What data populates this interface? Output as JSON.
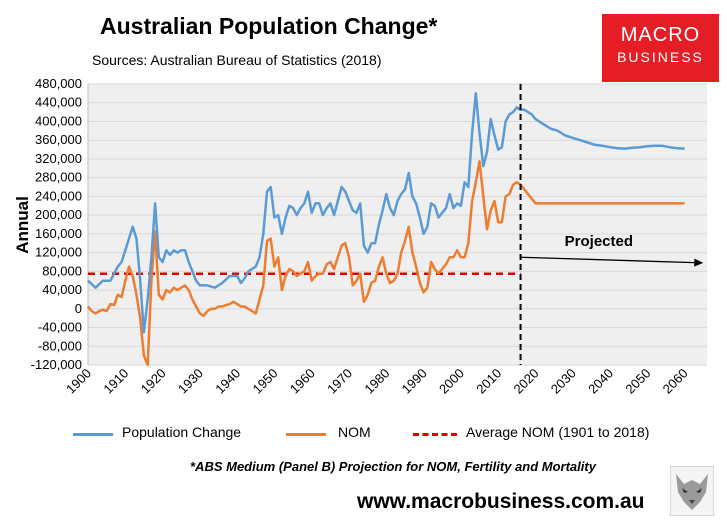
{
  "header": {
    "title": "Australian Population Change*",
    "sources": "Sources: Australian Bureau of Statistics (2018)"
  },
  "logo": {
    "line1": "MACRO",
    "line2": "BUSINESS"
  },
  "footer": {
    "footnote": "*ABS Medium (Panel B) Projection for NOM, Fertility and Mortality",
    "website": "www.macrobusiness.com.au"
  },
  "chart_data": {
    "type": "line",
    "title": "Australian Population Change*",
    "ylabel": "Annual",
    "xlim": [
      1900,
      2066
    ],
    "ylim": [
      -120000,
      480000
    ],
    "yticks": [
      -120000,
      -80000,
      -40000,
      0,
      40000,
      80000,
      120000,
      160000,
      200000,
      240000,
      280000,
      320000,
      360000,
      400000,
      440000,
      480000
    ],
    "ytick_labels": [
      "-120,000",
      "-80,000",
      "-40,000",
      "0",
      "40,000",
      "80,000",
      "120,000",
      "160,000",
      "200,000",
      "240,000",
      "280,000",
      "320,000",
      "360,000",
      "400,000",
      "440,000",
      "480,000"
    ],
    "xticks": [
      1900,
      1910,
      1920,
      1930,
      1940,
      1950,
      1960,
      1970,
      1980,
      1990,
      2000,
      2010,
      2020,
      2030,
      2040,
      2050,
      2060
    ],
    "xtick_labels": [
      "1900",
      "1910",
      "1920",
      "1930",
      "1940",
      "1950",
      "1960",
      "1970",
      "1980",
      "1990",
      "2000",
      "2010",
      "2020",
      "2030",
      "2040",
      "2050",
      "2060"
    ],
    "grid": "horizontal",
    "plot_background": "#efefef",
    "legend_position": "bottom",
    "series": [
      {
        "name": "Population Change",
        "color": "#5b9bd5",
        "points": [
          [
            1900,
            60000
          ],
          [
            1902,
            45000
          ],
          [
            1904,
            60000
          ],
          [
            1906,
            60000
          ],
          [
            1908,
            90000
          ],
          [
            1909,
            100000
          ],
          [
            1911,
            150000
          ],
          [
            1912,
            175000
          ],
          [
            1913,
            150000
          ],
          [
            1914,
            60000
          ],
          [
            1915,
            -50000
          ],
          [
            1916,
            20000
          ],
          [
            1917,
            110000
          ],
          [
            1918,
            225000
          ],
          [
            1919,
            110000
          ],
          [
            1920,
            100000
          ],
          [
            1921,
            125000
          ],
          [
            1922,
            115000
          ],
          [
            1923,
            125000
          ],
          [
            1924,
            120000
          ],
          [
            1925,
            125000
          ],
          [
            1926,
            125000
          ],
          [
            1927,
            100000
          ],
          [
            1928,
            80000
          ],
          [
            1929,
            60000
          ],
          [
            1930,
            50000
          ],
          [
            1932,
            50000
          ],
          [
            1934,
            45000
          ],
          [
            1936,
            55000
          ],
          [
            1938,
            70000
          ],
          [
            1940,
            70000
          ],
          [
            1941,
            55000
          ],
          [
            1942,
            65000
          ],
          [
            1943,
            80000
          ],
          [
            1945,
            90000
          ],
          [
            1946,
            110000
          ],
          [
            1947,
            160000
          ],
          [
            1948,
            250000
          ],
          [
            1949,
            260000
          ],
          [
            1950,
            195000
          ],
          [
            1951,
            200000
          ],
          [
            1952,
            160000
          ],
          [
            1953,
            195000
          ],
          [
            1954,
            220000
          ],
          [
            1955,
            215000
          ],
          [
            1956,
            200000
          ],
          [
            1957,
            215000
          ],
          [
            1958,
            225000
          ],
          [
            1959,
            250000
          ],
          [
            1960,
            205000
          ],
          [
            1961,
            225000
          ],
          [
            1962,
            225000
          ],
          [
            1963,
            200000
          ],
          [
            1964,
            215000
          ],
          [
            1965,
            225000
          ],
          [
            1966,
            200000
          ],
          [
            1967,
            230000
          ],
          [
            1968,
            260000
          ],
          [
            1969,
            250000
          ],
          [
            1970,
            230000
          ],
          [
            1971,
            210000
          ],
          [
            1972,
            205000
          ],
          [
            1973,
            225000
          ],
          [
            1974,
            135000
          ],
          [
            1975,
            120000
          ],
          [
            1976,
            140000
          ],
          [
            1977,
            140000
          ],
          [
            1978,
            180000
          ],
          [
            1979,
            210000
          ],
          [
            1980,
            245000
          ],
          [
            1981,
            215000
          ],
          [
            1982,
            200000
          ],
          [
            1983,
            230000
          ],
          [
            1984,
            245000
          ],
          [
            1985,
            255000
          ],
          [
            1986,
            290000
          ],
          [
            1987,
            240000
          ],
          [
            1988,
            225000
          ],
          [
            1989,
            195000
          ],
          [
            1990,
            160000
          ],
          [
            1991,
            175000
          ],
          [
            1992,
            225000
          ],
          [
            1993,
            220000
          ],
          [
            1994,
            195000
          ],
          [
            1995,
            205000
          ],
          [
            1996,
            215000
          ],
          [
            1997,
            245000
          ],
          [
            1998,
            215000
          ],
          [
            1999,
            225000
          ],
          [
            2000,
            220000
          ],
          [
            2001,
            270000
          ],
          [
            2002,
            260000
          ],
          [
            2003,
            375000
          ],
          [
            2004,
            460000
          ],
          [
            2005,
            375000
          ],
          [
            2006,
            305000
          ],
          [
            2007,
            335000
          ],
          [
            2008,
            405000
          ],
          [
            2009,
            370000
          ],
          [
            2010,
            340000
          ],
          [
            2011,
            345000
          ],
          [
            2012,
            400000
          ],
          [
            2013,
            415000
          ],
          [
            2014,
            420000
          ],
          [
            2015,
            430000
          ],
          [
            2016,
            425000
          ],
          [
            2017,
            425000
          ],
          [
            2018,
            420000
          ],
          [
            2019,
            415000
          ],
          [
            2020,
            405000
          ],
          [
            2022,
            395000
          ],
          [
            2024,
            385000
          ],
          [
            2026,
            380000
          ],
          [
            2028,
            370000
          ],
          [
            2030,
            365000
          ],
          [
            2032,
            360000
          ],
          [
            2034,
            355000
          ],
          [
            2036,
            350000
          ],
          [
            2038,
            348000
          ],
          [
            2040,
            345000
          ],
          [
            2042,
            343000
          ],
          [
            2044,
            342000
          ],
          [
            2046,
            344000
          ],
          [
            2048,
            345000
          ],
          [
            2050,
            347000
          ],
          [
            2052,
            348000
          ],
          [
            2054,
            348000
          ],
          [
            2056,
            345000
          ],
          [
            2058,
            343000
          ],
          [
            2060,
            342000
          ]
        ]
      },
      {
        "name": "NOM",
        "color": "#ed7d31",
        "points": [
          [
            1900,
            5000
          ],
          [
            1901,
            -5000
          ],
          [
            1902,
            -10000
          ],
          [
            1903,
            -5000
          ],
          [
            1904,
            -2000
          ],
          [
            1905,
            -5000
          ],
          [
            1906,
            10000
          ],
          [
            1907,
            8000
          ],
          [
            1908,
            30000
          ],
          [
            1909,
            25000
          ],
          [
            1910,
            60000
          ],
          [
            1911,
            90000
          ],
          [
            1912,
            70000
          ],
          [
            1913,
            30000
          ],
          [
            1914,
            -20000
          ],
          [
            1915,
            -100000
          ],
          [
            1916,
            -120000
          ],
          [
            1917,
            60000
          ],
          [
            1918,
            165000
          ],
          [
            1919,
            30000
          ],
          [
            1920,
            20000
          ],
          [
            1921,
            40000
          ],
          [
            1922,
            35000
          ],
          [
            1923,
            45000
          ],
          [
            1924,
            40000
          ],
          [
            1925,
            45000
          ],
          [
            1926,
            50000
          ],
          [
            1927,
            40000
          ],
          [
            1928,
            20000
          ],
          [
            1929,
            5000
          ],
          [
            1930,
            -10000
          ],
          [
            1931,
            -15000
          ],
          [
            1932,
            -5000
          ],
          [
            1933,
            0
          ],
          [
            1934,
            0
          ],
          [
            1935,
            5000
          ],
          [
            1936,
            5000
          ],
          [
            1937,
            8000
          ],
          [
            1938,
            10000
          ],
          [
            1939,
            15000
          ],
          [
            1940,
            10000
          ],
          [
            1941,
            5000
          ],
          [
            1942,
            5000
          ],
          [
            1943,
            0
          ],
          [
            1944,
            -5000
          ],
          [
            1945,
            -10000
          ],
          [
            1946,
            20000
          ],
          [
            1947,
            50000
          ],
          [
            1948,
            145000
          ],
          [
            1949,
            150000
          ],
          [
            1950,
            90000
          ],
          [
            1951,
            110000
          ],
          [
            1952,
            40000
          ],
          [
            1953,
            70000
          ],
          [
            1954,
            85000
          ],
          [
            1955,
            80000
          ],
          [
            1956,
            70000
          ],
          [
            1957,
            75000
          ],
          [
            1958,
            80000
          ],
          [
            1959,
            100000
          ],
          [
            1960,
            60000
          ],
          [
            1961,
            70000
          ],
          [
            1962,
            75000
          ],
          [
            1963,
            75000
          ],
          [
            1964,
            95000
          ],
          [
            1965,
            100000
          ],
          [
            1966,
            85000
          ],
          [
            1967,
            110000
          ],
          [
            1968,
            135000
          ],
          [
            1969,
            140000
          ],
          [
            1970,
            110000
          ],
          [
            1971,
            50000
          ],
          [
            1972,
            60000
          ],
          [
            1973,
            75000
          ],
          [
            1974,
            15000
          ],
          [
            1975,
            30000
          ],
          [
            1976,
            55000
          ],
          [
            1977,
            60000
          ],
          [
            1978,
            90000
          ],
          [
            1979,
            110000
          ],
          [
            1980,
            75000
          ],
          [
            1981,
            55000
          ],
          [
            1982,
            60000
          ],
          [
            1983,
            75000
          ],
          [
            1984,
            120000
          ],
          [
            1985,
            145000
          ],
          [
            1986,
            175000
          ],
          [
            1987,
            120000
          ],
          [
            1988,
            90000
          ],
          [
            1989,
            55000
          ],
          [
            1990,
            35000
          ],
          [
            1991,
            45000
          ],
          [
            1992,
            100000
          ],
          [
            1993,
            85000
          ],
          [
            1994,
            75000
          ],
          [
            1995,
            85000
          ],
          [
            1996,
            95000
          ],
          [
            1997,
            110000
          ],
          [
            1998,
            110000
          ],
          [
            1999,
            125000
          ],
          [
            2000,
            110000
          ],
          [
            2001,
            110000
          ],
          [
            2002,
            140000
          ],
          [
            2003,
            230000
          ],
          [
            2004,
            270000
          ],
          [
            2005,
            315000
          ],
          [
            2006,
            240000
          ],
          [
            2007,
            170000
          ],
          [
            2008,
            210000
          ],
          [
            2009,
            230000
          ],
          [
            2010,
            185000
          ],
          [
            2011,
            185000
          ],
          [
            2012,
            240000
          ],
          [
            2013,
            245000
          ],
          [
            2014,
            265000
          ],
          [
            2015,
            270000
          ],
          [
            2016,
            265000
          ],
          [
            2017,
            255000
          ],
          [
            2018,
            245000
          ],
          [
            2019,
            235000
          ],
          [
            2020,
            225000
          ],
          [
            2022,
            225000
          ],
          [
            2030,
            225000
          ],
          [
            2040,
            225000
          ],
          [
            2050,
            225000
          ],
          [
            2060,
            225000
          ]
        ]
      },
      {
        "name": "Average NOM (1901 to 2018)",
        "color": "#e00000",
        "style": "dashed",
        "points": [
          [
            1900,
            75000
          ],
          [
            2016,
            75000
          ]
        ]
      }
    ],
    "vertical_marker": {
      "x": 2016,
      "style": "dashed",
      "color": "#000000"
    },
    "annotations": [
      {
        "text": "Projected",
        "x": 2037,
        "y": 145000,
        "arrow_from": [
          2016,
          110000
        ],
        "arrow_to": [
          2065,
          98000
        ]
      }
    ]
  }
}
